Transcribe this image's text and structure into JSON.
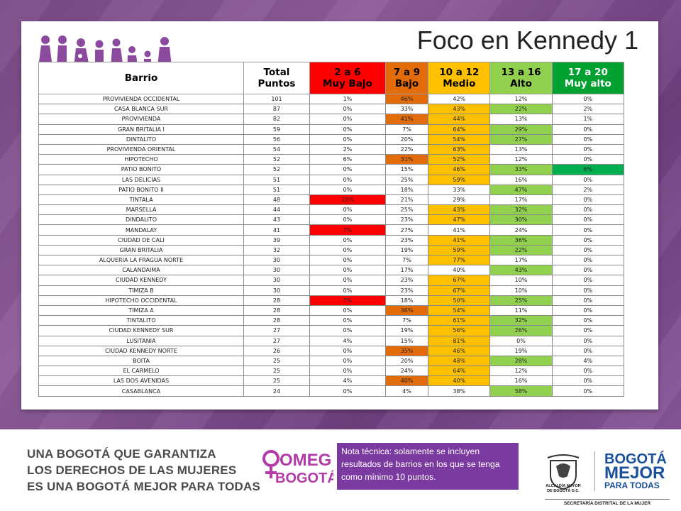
{
  "title": "Foco en Kennedy 1",
  "table": {
    "headers": [
      {
        "line1": "Barrio",
        "line2": ""
      },
      {
        "line1": "Total",
        "line2": "Puntos"
      },
      {
        "line1": "2 a 6",
        "line2": "Muy Bajo"
      },
      {
        "line1": "7 a 9",
        "line2": "Bajo"
      },
      {
        "line1": "10 a 12",
        "line2": "Medio"
      },
      {
        "line1": "13 a 16",
        "line2": "Alto"
      },
      {
        "line1": "17 a 20",
        "line2": "Muy alto"
      }
    ],
    "rows": [
      {
        "barrio": "PROVIVIENDA OCCIDENTAL",
        "total": "101",
        "c": [
          "1%",
          "46%",
          "42%",
          "12%",
          "0%"
        ],
        "h": [
          null,
          "orange",
          null,
          null,
          null
        ]
      },
      {
        "barrio": "CASA BLANCA SUR",
        "total": "87",
        "c": [
          "0%",
          "33%",
          "43%",
          "22%",
          "2%"
        ],
        "h": [
          null,
          null,
          "yellow",
          "lgreen",
          null
        ]
      },
      {
        "barrio": "PROVIVIENDA",
        "total": "82",
        "c": [
          "0%",
          "41%",
          "44%",
          "13%",
          "1%"
        ],
        "h": [
          null,
          "orange",
          "yellow",
          null,
          null
        ]
      },
      {
        "barrio": "GRAN BRITALIA I",
        "total": "59",
        "c": [
          "0%",
          "7%",
          "64%",
          "29%",
          "0%"
        ],
        "h": [
          null,
          null,
          "yellow",
          "lgreen",
          null
        ]
      },
      {
        "barrio": "DINTALITO",
        "total": "56",
        "c": [
          "0%",
          "20%",
          "54%",
          "27%",
          "0%"
        ],
        "h": [
          null,
          null,
          "yellow",
          "lgreen",
          null
        ]
      },
      {
        "barrio": "PROVIVIENDA ORIENTAL",
        "total": "54",
        "c": [
          "2%",
          "22%",
          "63%",
          "13%",
          "0%"
        ],
        "h": [
          null,
          null,
          "yellow",
          null,
          null
        ]
      },
      {
        "barrio": "HIPOTECHO",
        "total": "52",
        "c": [
          "6%",
          "31%",
          "52%",
          "12%",
          "0%"
        ],
        "h": [
          null,
          "orange",
          "yellow",
          null,
          null
        ]
      },
      {
        "barrio": "PATIO BONITO",
        "total": "52",
        "c": [
          "0%",
          "15%",
          "46%",
          "33%",
          "6%"
        ],
        "h": [
          null,
          null,
          "yellow",
          "lgreen",
          "dgreen"
        ]
      },
      {
        "barrio": "LAS DELICIAS",
        "total": "51",
        "c": [
          "0%",
          "25%",
          "59%",
          "16%",
          "0%"
        ],
        "h": [
          null,
          null,
          "yellow",
          null,
          null
        ]
      },
      {
        "barrio": "PATIO BONITO II",
        "total": "51",
        "c": [
          "0%",
          "18%",
          "33%",
          "47%",
          "2%"
        ],
        "h": [
          null,
          null,
          null,
          "lgreen",
          null
        ]
      },
      {
        "barrio": "TINTALA",
        "total": "48",
        "c": [
          "33%",
          "21%",
          "29%",
          "17%",
          "0%"
        ],
        "h": [
          "red",
          null,
          null,
          null,
          null
        ]
      },
      {
        "barrio": "MARSELLA",
        "total": "44",
        "c": [
          "0%",
          "25%",
          "43%",
          "32%",
          "0%"
        ],
        "h": [
          null,
          null,
          "yellow",
          "lgreen",
          null
        ]
      },
      {
        "barrio": "DINDALITO",
        "total": "43",
        "c": [
          "0%",
          "23%",
          "47%",
          "30%",
          "0%"
        ],
        "h": [
          null,
          null,
          "yellow",
          "lgreen",
          null
        ]
      },
      {
        "barrio": "MANDALAY",
        "total": "41",
        "c": [
          "7%",
          "27%",
          "41%",
          "24%",
          "0%"
        ],
        "h": [
          "red",
          null,
          null,
          null,
          null
        ]
      },
      {
        "barrio": "CIUDAD DE CALI",
        "total": "39",
        "c": [
          "0%",
          "23%",
          "41%",
          "36%",
          "0%"
        ],
        "h": [
          null,
          null,
          "yellow",
          "lgreen",
          null
        ]
      },
      {
        "barrio": "GRAN BRITALIA",
        "total": "32",
        "c": [
          "0%",
          "19%",
          "59%",
          "22%",
          "0%"
        ],
        "h": [
          null,
          null,
          "yellow",
          "lgreen",
          null
        ]
      },
      {
        "barrio": "ALQUERIA LA FRAGUA NORTE",
        "total": "30",
        "c": [
          "0%",
          "7%",
          "77%",
          "17%",
          "0%"
        ],
        "h": [
          null,
          null,
          "yellow",
          null,
          null
        ]
      },
      {
        "barrio": "CALANDAIMA",
        "total": "30",
        "c": [
          "0%",
          "17%",
          "40%",
          "43%",
          "0%"
        ],
        "h": [
          null,
          null,
          null,
          "lgreen",
          null
        ]
      },
      {
        "barrio": "CIUDAD KENNEDY",
        "total": "30",
        "c": [
          "0%",
          "23%",
          "67%",
          "10%",
          "0%"
        ],
        "h": [
          null,
          null,
          "yellow",
          null,
          null
        ]
      },
      {
        "barrio": "TIMIZA B",
        "total": "30",
        "c": [
          "0%",
          "23%",
          "67%",
          "10%",
          "0%"
        ],
        "h": [
          null,
          null,
          "yellow",
          null,
          null
        ]
      },
      {
        "barrio": "HIPOTECHO OCCIDENTAL",
        "total": "28",
        "c": [
          "7%",
          "18%",
          "50%",
          "25%",
          "0%"
        ],
        "h": [
          "red",
          null,
          "yellow",
          "lgreen",
          null
        ]
      },
      {
        "barrio": "TIMIZA A",
        "total": "28",
        "c": [
          "0%",
          "36%",
          "54%",
          "11%",
          "0%"
        ],
        "h": [
          null,
          "orange",
          "yellow",
          null,
          null
        ]
      },
      {
        "barrio": "TINTALITO",
        "total": "28",
        "c": [
          "0%",
          "7%",
          "61%",
          "32%",
          "0%"
        ],
        "h": [
          null,
          null,
          "yellow",
          "lgreen",
          null
        ]
      },
      {
        "barrio": "CIUDAD KENNEDY SUR",
        "total": "27",
        "c": [
          "0%",
          "19%",
          "56%",
          "26%",
          "0%"
        ],
        "h": [
          null,
          null,
          "yellow",
          "lgreen",
          null
        ]
      },
      {
        "barrio": "LUSITANIA",
        "total": "27",
        "c": [
          "4%",
          "15%",
          "81%",
          "0%",
          "0%"
        ],
        "h": [
          null,
          null,
          "yellow",
          null,
          null
        ]
      },
      {
        "barrio": "CIUDAD KENNEDY NORTE",
        "total": "26",
        "c": [
          "0%",
          "35%",
          "46%",
          "19%",
          "0%"
        ],
        "h": [
          null,
          "orange",
          "yellow",
          null,
          null
        ]
      },
      {
        "barrio": "BOITA",
        "total": "25",
        "c": [
          "0%",
          "20%",
          "48%",
          "28%",
          "4%"
        ],
        "h": [
          null,
          null,
          "yellow",
          "lgreen",
          null
        ]
      },
      {
        "barrio": "EL CARMELO",
        "total": "25",
        "c": [
          "0%",
          "24%",
          "64%",
          "12%",
          "0%"
        ],
        "h": [
          null,
          null,
          "yellow",
          null,
          null
        ]
      },
      {
        "barrio": "LAS DOS AVENIDAS",
        "total": "25",
        "c": [
          "4%",
          "40%",
          "40%",
          "16%",
          "0%"
        ],
        "h": [
          null,
          "orange",
          "yellow",
          null,
          null
        ]
      },
      {
        "barrio": "CASABLANCA",
        "total": "24",
        "c": [
          "0%",
          "4%",
          "38%",
          "58%",
          "0%"
        ],
        "h": [
          null,
          null,
          null,
          "lgreen",
          null
        ]
      }
    ]
  },
  "footer": {
    "slogan": [
      "UNA BOGOTÁ QUE GARANTIZA",
      "LOS DERECHOS DE LAS MUJERES",
      "ES UNA BOGOTÁ MEJOR PARA TODAS"
    ],
    "omeg_logo": [
      "OMEG",
      "BOGOTÁ"
    ],
    "note": "Nota técnica: solamente se incluyen resultados de barrios en los que se tenga como mínimo 10 puntos.",
    "crest_label": [
      "ALCALDÍA MAYOR",
      "DE BOGOTÁ D.C."
    ],
    "bogota_logo": [
      "BOGOTÁ",
      "MEJOR",
      "PARA TODAS"
    ],
    "secretaria": "SECRETARÍA DISTRITAL DE LA MUJER"
  },
  "colors": {
    "red": "#ff0000",
    "orange": "#e36c0a",
    "yellow": "#ffc000",
    "lgreen": "#92d050",
    "dgreen": "#00b050",
    "purple": "#7b3aa0"
  }
}
